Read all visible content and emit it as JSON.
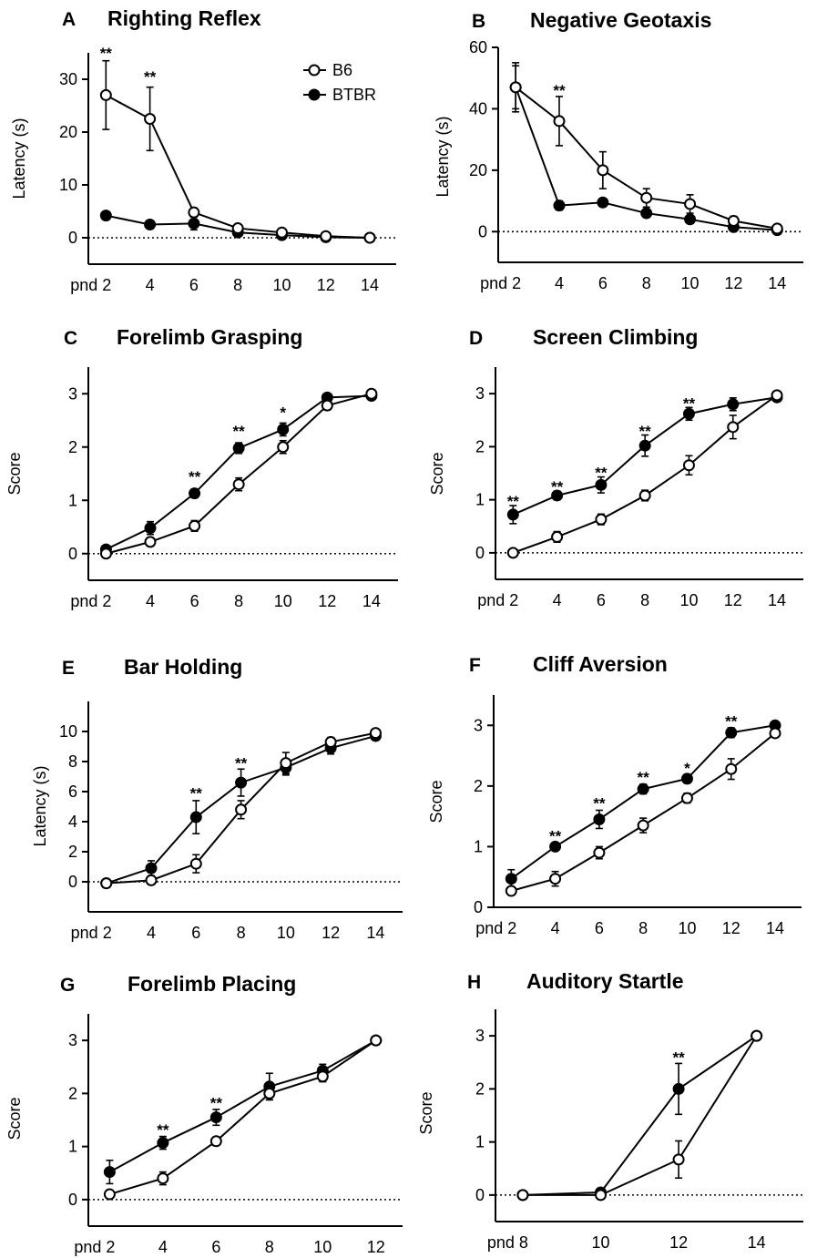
{
  "legend": {
    "b6": "B6",
    "btbr": "BTBR"
  },
  "chart_data": [
    {
      "letter": "A",
      "title": "Righting Reflex",
      "type": "line",
      "ylabel": "Latency (s)",
      "ylim": [
        -5,
        35
      ],
      "yticks": [
        0,
        10,
        20,
        30
      ],
      "xticks": [
        2,
        4,
        6,
        8,
        10,
        12,
        14
      ],
      "xticklabels": [
        "pnd 2",
        "4",
        "6",
        "8",
        "10",
        "12",
        "14"
      ],
      "zero_line": true,
      "legend": "top-right",
      "series": [
        {
          "name": "B6",
          "fill": "open",
          "x": [
            2,
            4,
            6,
            8,
            10,
            12,
            14
          ],
          "y": [
            27,
            22.5,
            4.8,
            1.8,
            1,
            0.3,
            0
          ],
          "err": [
            6.5,
            6,
            0.8,
            0.4,
            0.3,
            0.2,
            0.1
          ]
        },
        {
          "name": "BTBR",
          "fill": "filled",
          "x": [
            2,
            4,
            6,
            8,
            10,
            12,
            14
          ],
          "y": [
            4.2,
            2.5,
            2.7,
            1,
            0.5,
            0.1,
            0
          ],
          "err": [
            0.4,
            0.4,
            1.2,
            0.3,
            0.2,
            0.1,
            0.1
          ]
        }
      ],
      "annotations": [
        {
          "x": 2,
          "y": 35,
          "text": "**"
        },
        {
          "x": 4,
          "y": 30.5,
          "text": "**"
        }
      ]
    },
    {
      "letter": "B",
      "title": "Negative Geotaxis",
      "type": "line",
      "ylabel": "Latency (s)",
      "ylim": [
        -10,
        60
      ],
      "yticks": [
        0,
        20,
        40,
        60
      ],
      "xticks": [
        2,
        4,
        6,
        8,
        10,
        12,
        14
      ],
      "xticklabels": [
        "pnd 2",
        "4",
        "6",
        "8",
        "10",
        "12",
        "14"
      ],
      "zero_line": true,
      "series": [
        {
          "name": "B6",
          "fill": "open",
          "x": [
            2,
            4,
            6,
            8,
            10,
            12,
            14
          ],
          "y": [
            47,
            36,
            20,
            11,
            9,
            3.5,
            1
          ],
          "err": [
            7,
            8,
            6,
            3,
            3,
            1.5,
            0.5
          ]
        },
        {
          "name": "BTBR",
          "fill": "filled",
          "x": [
            2,
            4,
            6,
            8,
            10,
            12,
            14
          ],
          "y": [
            47,
            8.5,
            9.5,
            6,
            4,
            1.5,
            0.5
          ],
          "err": [
            8,
            1.5,
            1,
            1,
            1,
            0.5,
            0.3
          ]
        }
      ],
      "annotations": [
        {
          "x": 4,
          "y": 46,
          "text": "**"
        }
      ]
    },
    {
      "letter": "C",
      "title": "Forelimb Grasping",
      "type": "line",
      "ylabel": "Score",
      "ylim": [
        -0.5,
        3.5
      ],
      "yticks": [
        0,
        1,
        2,
        3
      ],
      "xticks": [
        2,
        4,
        6,
        8,
        10,
        12,
        14
      ],
      "xticklabels": [
        "pnd 2",
        "4",
        "6",
        "8",
        "10",
        "12",
        "14"
      ],
      "zero_line": true,
      "series": [
        {
          "name": "B6",
          "fill": "open",
          "x": [
            2,
            4,
            6,
            8,
            10,
            12,
            14
          ],
          "y": [
            0,
            0.22,
            0.52,
            1.3,
            2,
            2.78,
            3
          ],
          "err": [
            0.05,
            0.08,
            0.1,
            0.12,
            0.12,
            0.08,
            0.02
          ]
        },
        {
          "name": "BTBR",
          "fill": "filled",
          "x": [
            2,
            4,
            6,
            8,
            10,
            12,
            14
          ],
          "y": [
            0.08,
            0.48,
            1.13,
            1.98,
            2.33,
            2.93,
            2.96
          ],
          "err": [
            0.05,
            0.12,
            0.08,
            0.1,
            0.12,
            0.05,
            0.03
          ]
        }
      ],
      "annotations": [
        {
          "x": 6,
          "y": 1.45,
          "text": "**"
        },
        {
          "x": 8,
          "y": 2.3,
          "text": "**"
        },
        {
          "x": 10,
          "y": 2.65,
          "text": "*"
        }
      ]
    },
    {
      "letter": "D",
      "title": "Screen Climbing",
      "type": "line",
      "ylabel": "Score",
      "ylim": [
        -0.5,
        3.5
      ],
      "yticks": [
        0,
        1,
        2,
        3
      ],
      "xticks": [
        2,
        4,
        6,
        8,
        10,
        12,
        14
      ],
      "xticklabels": [
        "pnd 2",
        "4",
        "6",
        "8",
        "10",
        "12",
        "14"
      ],
      "zero_line": true,
      "series": [
        {
          "name": "B6",
          "fill": "open",
          "x": [
            2,
            4,
            6,
            8,
            10,
            12,
            14
          ],
          "y": [
            0,
            0.3,
            0.63,
            1.08,
            1.65,
            2.37,
            2.97
          ],
          "err": [
            0.03,
            0.1,
            0.1,
            0.1,
            0.18,
            0.22,
            0.05
          ]
        },
        {
          "name": "BTBR",
          "fill": "filled",
          "x": [
            2,
            4,
            6,
            8,
            10,
            12,
            14
          ],
          "y": [
            0.72,
            1.08,
            1.28,
            2.02,
            2.62,
            2.8,
            2.93
          ],
          "err": [
            0.17,
            0.08,
            0.15,
            0.2,
            0.12,
            0.12,
            0.05
          ]
        }
      ],
      "annotations": [
        {
          "x": 2,
          "y": 0.98,
          "text": "**"
        },
        {
          "x": 4,
          "y": 1.25,
          "text": "**"
        },
        {
          "x": 6,
          "y": 1.52,
          "text": "**"
        },
        {
          "x": 8,
          "y": 2.3,
          "text": "**"
        },
        {
          "x": 10,
          "y": 2.82,
          "text": "**"
        }
      ]
    },
    {
      "letter": "E",
      "title": "Bar Holding",
      "type": "line",
      "ylabel": "Latency (s)",
      "ylim": [
        -2,
        12
      ],
      "yticks": [
        0,
        2,
        4,
        6,
        8,
        10
      ],
      "xticks": [
        2,
        4,
        6,
        8,
        10,
        12,
        14
      ],
      "xticklabels": [
        "pnd 2",
        "4",
        "6",
        "8",
        "10",
        "12",
        "14"
      ],
      "zero_line": true,
      "series": [
        {
          "name": "B6",
          "fill": "open",
          "x": [
            2,
            4,
            6,
            8,
            10,
            12,
            14
          ],
          "y": [
            -0.1,
            0.1,
            1.2,
            4.8,
            7.9,
            9.3,
            9.9
          ],
          "err": [
            0.1,
            0.15,
            0.6,
            0.6,
            0.7,
            0.3,
            0.15
          ]
        },
        {
          "name": "BTBR",
          "fill": "filled",
          "x": [
            2,
            4,
            6,
            8,
            10,
            12,
            14
          ],
          "y": [
            -0.1,
            0.9,
            4.3,
            6.6,
            7.6,
            8.9,
            9.7
          ],
          "err": [
            0.1,
            0.5,
            1.1,
            0.9,
            0.5,
            0.4,
            0.2
          ]
        }
      ],
      "annotations": [
        {
          "x": 6,
          "y": 5.9,
          "text": "**"
        },
        {
          "x": 8,
          "y": 7.9,
          "text": "**"
        }
      ]
    },
    {
      "letter": "F",
      "title": "Cliff Aversion",
      "type": "line",
      "ylabel": "Score",
      "ylim": [
        0,
        3.5
      ],
      "yticks": [
        0,
        1,
        2,
        3
      ],
      "xticks": [
        2,
        4,
        6,
        8,
        10,
        12,
        14
      ],
      "xticklabels": [
        "pnd 2",
        "4",
        "6",
        "8",
        "10",
        "12",
        "14"
      ],
      "zero_line": false,
      "series": [
        {
          "name": "B6",
          "fill": "open",
          "x": [
            2,
            4,
            6,
            8,
            10,
            12,
            14
          ],
          "y": [
            0.27,
            0.47,
            0.9,
            1.35,
            1.8,
            2.28,
            2.87
          ],
          "err": [
            0.05,
            0.12,
            0.1,
            0.12,
            0.08,
            0.17,
            0.06
          ]
        },
        {
          "name": "BTBR",
          "fill": "filled",
          "x": [
            2,
            4,
            6,
            8,
            10,
            12,
            14
          ],
          "y": [
            0.47,
            1.0,
            1.45,
            1.95,
            2.12,
            2.88,
            3.0
          ],
          "err": [
            0.15,
            0.05,
            0.15,
            0.08,
            0.07,
            0.08,
            0.04
          ]
        }
      ],
      "annotations": [
        {
          "x": 4,
          "y": 1.18,
          "text": "**"
        },
        {
          "x": 6,
          "y": 1.72,
          "text": "**"
        },
        {
          "x": 8,
          "y": 2.15,
          "text": "**"
        },
        {
          "x": 10,
          "y": 2.3,
          "text": "*"
        },
        {
          "x": 12,
          "y": 3.07,
          "text": "**"
        }
      ]
    },
    {
      "letter": "G",
      "title": "Forelimb Placing",
      "type": "line",
      "ylabel": "Score",
      "ylim": [
        -0.5,
        3.5
      ],
      "yticks": [
        0,
        1,
        2,
        3
      ],
      "xticks": [
        2,
        4,
        6,
        8,
        10,
        12
      ],
      "xticklabels": [
        "pnd 2",
        "4",
        "6",
        "8",
        "10",
        "12"
      ],
      "zero_line": true,
      "series": [
        {
          "name": "B6",
          "fill": "open",
          "x": [
            2,
            4,
            6,
            8,
            10,
            12
          ],
          "y": [
            0.1,
            0.4,
            1.1,
            2.0,
            2.32,
            3.0
          ],
          "err": [
            0.08,
            0.12,
            0.08,
            0.12,
            0.1,
            0.02
          ]
        },
        {
          "name": "BTBR",
          "fill": "filled",
          "x": [
            2,
            4,
            6,
            8,
            10,
            12
          ],
          "y": [
            0.52,
            1.07,
            1.55,
            2.13,
            2.43,
            3.0
          ],
          "err": [
            0.22,
            0.12,
            0.15,
            0.25,
            0.12,
            0.02
          ]
        }
      ],
      "annotations": [
        {
          "x": 4,
          "y": 1.32,
          "text": "**"
        },
        {
          "x": 6,
          "y": 1.83,
          "text": "**"
        }
      ]
    },
    {
      "letter": "H",
      "title": "Auditory Startle",
      "type": "line",
      "ylabel": "Score",
      "ylim": [
        -0.5,
        3.5
      ],
      "yticks": [
        0,
        1,
        2,
        3
      ],
      "xticks": [
        8,
        10,
        12,
        14
      ],
      "xticklabels": [
        "pnd 8",
        "10",
        "12",
        "14"
      ],
      "zero_line": true,
      "series": [
        {
          "name": "B6",
          "fill": "open",
          "x": [
            8,
            10,
            12,
            14
          ],
          "y": [
            0,
            0,
            0.67,
            3
          ],
          "err": [
            0.02,
            0.02,
            0.35,
            0.02
          ]
        },
        {
          "name": "BTBR",
          "fill": "filled",
          "x": [
            8,
            10,
            12,
            14
          ],
          "y": [
            0,
            0.05,
            2.0,
            3
          ],
          "err": [
            0.02,
            0.05,
            0.48,
            0.02
          ]
        }
      ],
      "annotations": [
        {
          "x": 12,
          "y": 2.6,
          "text": "**"
        }
      ]
    }
  ]
}
